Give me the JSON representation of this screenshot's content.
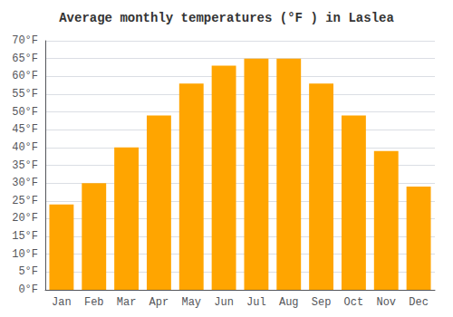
{
  "chart_data": {
    "type": "bar",
    "title": "Average monthly temperatures (°F ) in Laslea",
    "categories": [
      "Jan",
      "Feb",
      "Mar",
      "Apr",
      "May",
      "Jun",
      "Jul",
      "Aug",
      "Sep",
      "Oct",
      "Nov",
      "Dec"
    ],
    "values": [
      24,
      30,
      40,
      49,
      58,
      63,
      65,
      65,
      58,
      49,
      39,
      29
    ],
    "color": "#FFA500",
    "ylim": [
      0,
      70
    ],
    "yticks": [
      {
        "value": 0,
        "label": "0°F"
      },
      {
        "value": 5,
        "label": "5°F"
      },
      {
        "value": 10,
        "label": "10°F"
      },
      {
        "value": 15,
        "label": "15°F"
      },
      {
        "value": 20,
        "label": "20°F"
      },
      {
        "value": 25,
        "label": "25°F"
      },
      {
        "value": 30,
        "label": "30°F"
      },
      {
        "value": 35,
        "label": "35°F"
      },
      {
        "value": 40,
        "label": "40°F"
      },
      {
        "value": 45,
        "label": "45°F"
      },
      {
        "value": 50,
        "label": "50°F"
      },
      {
        "value": 55,
        "label": "55°F"
      },
      {
        "value": 60,
        "label": "60°F"
      },
      {
        "value": 65,
        "label": "65°F"
      },
      {
        "value": 70,
        "label": "70°F"
      }
    ],
    "grid": true
  }
}
